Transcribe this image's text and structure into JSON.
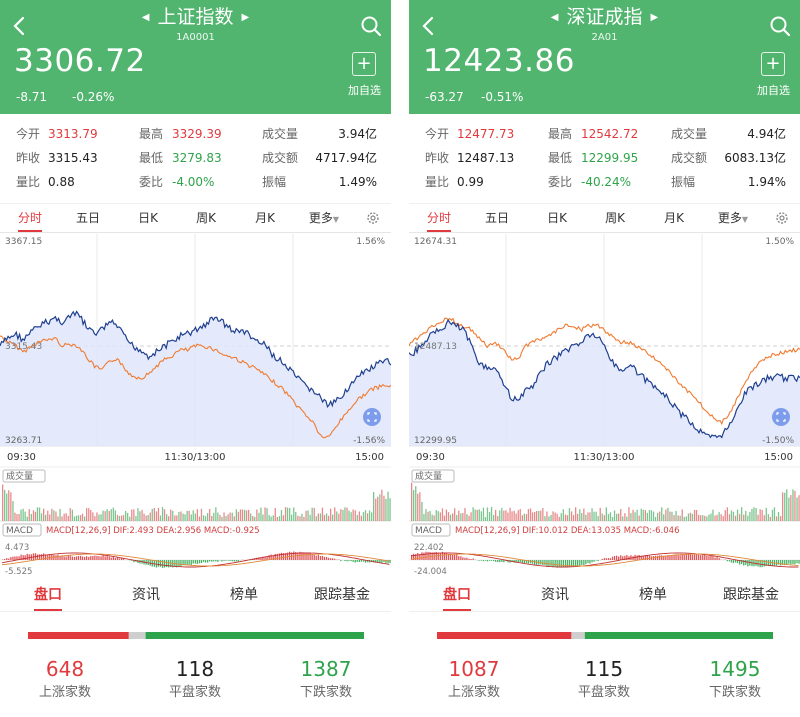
{
  "panels": [
    {
      "title": "上证指数",
      "code": "1A0001",
      "price": "3306.72",
      "change": "-8.71",
      "change_pct": "-0.26%",
      "add_label": "加自选",
      "add_symbol": "+",
      "stats": {
        "open_label": "今开",
        "open": "3313.79",
        "high_label": "最高",
        "high": "3329.39",
        "volume_label": "成交量",
        "volume": "3.94亿",
        "prev_label": "昨收",
        "prev": "3315.43",
        "low_label": "最低",
        "low": "3279.83",
        "amount_label": "成交额",
        "amount": "4717.94亿",
        "ratio_label": "量比",
        "ratio": "0.88",
        "commit_label": "委比",
        "commit": "-4.00%",
        "amp_label": "振幅",
        "amp": "1.49%"
      },
      "chart": {
        "top_left": "3367.15",
        "top_right": "1.56%",
        "mid_left": "3315.43",
        "bottom_left": "3263.71",
        "bottom_right": "-1.56%",
        "time_start": "09:30",
        "time_mid": "11:30/13:00",
        "time_end": "15:00"
      },
      "macd_label": "MACD[12,26,9] DIF:2.493 DEA:2.956 MACD:-0.925",
      "macd_top": "4.473",
      "macd_bottom": "-5.525",
      "counts": {
        "up": "648",
        "flat": "118",
        "down": "1387"
      },
      "ratio_bar": {
        "up": 0.3,
        "flat": 0.05,
        "down": 0.65
      }
    },
    {
      "title": "深证成指",
      "code": "2A01",
      "price": "12423.86",
      "change": "-63.27",
      "change_pct": "-0.51%",
      "add_label": "加自选",
      "add_symbol": "+",
      "stats": {
        "open_label": "今开",
        "open": "12477.73",
        "high_label": "最高",
        "high": "12542.72",
        "volume_label": "成交量",
        "volume": "4.94亿",
        "prev_label": "昨收",
        "prev": "12487.13",
        "low_label": "最低",
        "low": "12299.95",
        "amount_label": "成交额",
        "amount": "6083.13亿",
        "ratio_label": "量比",
        "ratio": "0.99",
        "commit_label": "委比",
        "commit": "-40.24%",
        "amp_label": "振幅",
        "amp": "1.94%"
      },
      "chart": {
        "top_left": "12674.31",
        "top_right": "1.50%",
        "mid_left": "12487.13",
        "bottom_left": "12299.95",
        "bottom_right": "-1.50%",
        "time_start": "09:30",
        "time_mid": "11:30/13:00",
        "time_end": "15:00"
      },
      "macd_label": "MACD[12,26,9] DIF:10.012 DEA:13.035 MACD:-6.046",
      "macd_top": "22.402",
      "macd_bottom": "-24.004",
      "counts": {
        "up": "1087",
        "flat": "115",
        "down": "1495"
      },
      "ratio_bar": {
        "up": 0.4,
        "flat": 0.04,
        "down": 0.56
      }
    }
  ],
  "tabs": [
    "分时",
    "五日",
    "日K",
    "周K",
    "月K",
    "更多"
  ],
  "bottom_tabs": [
    "盘口",
    "资讯",
    "榜单",
    "跟踪基金"
  ],
  "volume_tag": "成交量",
  "macd_tag": "MACD",
  "count_labels": {
    "up": "上涨家数",
    "flat": "平盘家数",
    "down": "下跌家数"
  },
  "colors": {
    "header": "#52b56f",
    "up": "#e03a3e",
    "down": "#2ea34b",
    "index_line": "#1f3f8f",
    "avg_line": "#f07a30"
  }
}
